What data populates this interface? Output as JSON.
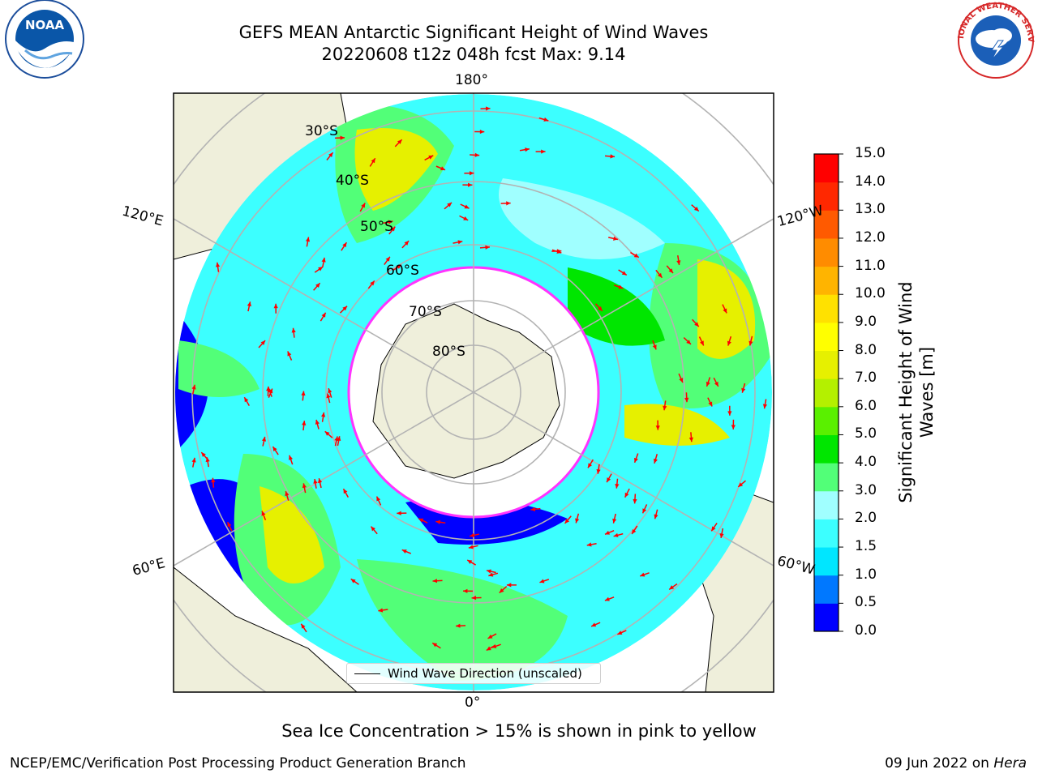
{
  "header": {
    "title_line1": "GEFS MEAN Antarctic Significant Height of Wind Waves",
    "title_line2": "20220608 t12z 048h fcst   Max: 9.14"
  },
  "logos": {
    "left": {
      "icon": "noaa-logo-icon",
      "text": "NOAA"
    },
    "right": {
      "icon": "nws-logo-icon",
      "text": "NATIONAL WEATHER SERVICE"
    }
  },
  "map": {
    "longitude_labels": {
      "top": "180°",
      "bottom": "0°",
      "left_upper": "120°E",
      "right_upper": "120°W",
      "left_lower": "60°E",
      "right_lower": "60°W"
    },
    "latitude_labels": [
      "30°S",
      "40°S",
      "50°S",
      "60°S",
      "70°S",
      "80°S"
    ],
    "legend_label": "Wind Wave Direction (unscaled)",
    "colors": {
      "land": "#efefdb",
      "ice": "#ffffff",
      "grid": "#b3b3b3",
      "arrow": "#ff0000",
      "ice_edge": "#ff33ff"
    }
  },
  "colorbar": {
    "title": "Significant Height of Wind Waves [m]",
    "ticks": [
      "0.0",
      "0.5",
      "1.0",
      "1.5",
      "2.0",
      "3.0",
      "4.0",
      "5.0",
      "6.0",
      "7.0",
      "8.0",
      "9.0",
      "10.0",
      "11.0",
      "12.0",
      "13.0",
      "14.0",
      "15.0"
    ],
    "colors": [
      "#0000ff",
      "#0078ff",
      "#00e6ff",
      "#3cffff",
      "#a0ffff",
      "#52ff78",
      "#00e600",
      "#5af000",
      "#b4f000",
      "#e6f000",
      "#ffff00",
      "#ffe100",
      "#ffb400",
      "#ff8c00",
      "#ff5a00",
      "#ff2800",
      "#ff0000"
    ]
  },
  "chart_data": {
    "type": "heatmap",
    "title": "GEFS MEAN Antarctic Significant Height of Wind Waves",
    "variable": "Significant Height of Wind Waves [m]",
    "run": "20220608 t12z",
    "forecast_hour": "048h",
    "max_value": 9.14,
    "color_scale_range": [
      0.0,
      15.0
    ],
    "projection": "south polar stereographic"
  },
  "notes": {
    "sea_ice": "Sea Ice Concentration > 15% is shown in pink to yellow"
  },
  "footer": {
    "left": "NCEP/EMC/Verification Post Processing Product Generation Branch",
    "right_date": "09 Jun 2022 on ",
    "right_host": "Hera"
  }
}
